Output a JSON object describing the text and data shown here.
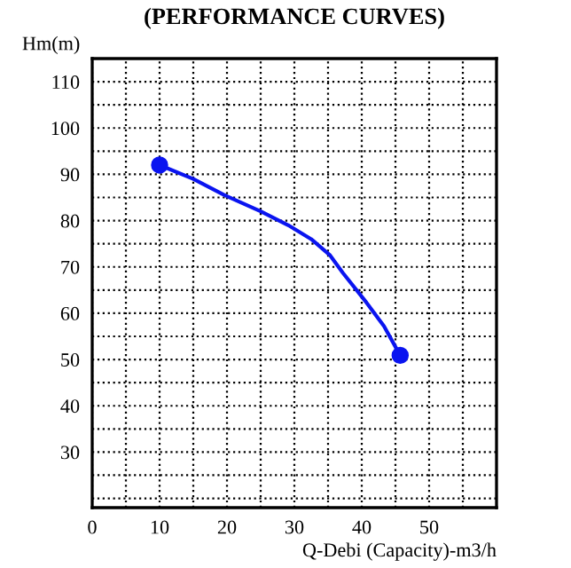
{
  "chart_data": {
    "type": "line",
    "title": "(PERFORMANCE CURVES)",
    "xlabel": "Q-Debi (Capacity)-m3/h",
    "ylabel": "Hm(m)",
    "series": [
      {
        "color": "#0a14f0",
        "x": [
          10,
          15,
          19.5,
          25,
          29.1,
          32.5,
          35.3,
          37.2,
          40.7,
          43.3,
          45.7
        ],
        "values": [
          92,
          89,
          85.6,
          82,
          79,
          76,
          72.5,
          68.7,
          62.3,
          57.2,
          50.9
        ]
      },
      {
        "type": "scatter",
        "color": "#0a14f0",
        "x": [
          10,
          45.7
        ],
        "values": [
          92,
          50.9
        ]
      }
    ],
    "line_style": "solid",
    "grid": true,
    "legend": false,
    "xlim": [
      0,
      60
    ],
    "ylim": [
      18,
      115
    ],
    "xticks": [
      0,
      {
        "value": 5,
        "label": null
      },
      10,
      {
        "value": 15,
        "label": null
      },
      20,
      {
        "value": 25,
        "label": null
      },
      30,
      {
        "value": 35,
        "label": null
      },
      40,
      {
        "value": 45,
        "label": null
      },
      50,
      {
        "value": 55,
        "label": null
      }
    ],
    "yticks": [
      {
        "value": 20,
        "label": null
      },
      {
        "value": 25,
        "label": null
      },
      30,
      {
        "value": 35,
        "label": null
      },
      40,
      {
        "value": 45,
        "label": null
      },
      50,
      {
        "value": 55,
        "label": null
      },
      60,
      {
        "value": 65,
        "label": null
      },
      70,
      {
        "value": 75,
        "label": null
      },
      80,
      {
        "value": 85,
        "label": null
      },
      90,
      {
        "value": 95,
        "label": null
      },
      100,
      {
        "value": 105,
        "label": null
      },
      110
    ]
  }
}
